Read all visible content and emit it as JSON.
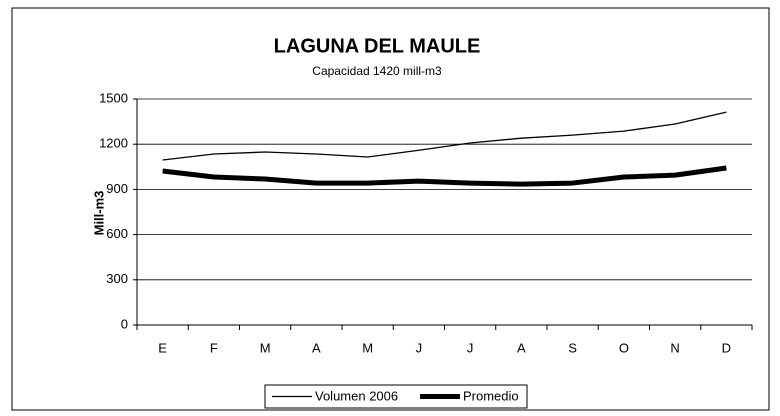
{
  "chart_data": {
    "type": "line",
    "title": "LAGUNA DEL MAULE",
    "subtitle": "Capacidad 1420 mill-m3",
    "y_label": "Mill-m3",
    "categories": [
      "E",
      "F",
      "M",
      "A",
      "M",
      "J",
      "J",
      "A",
      "S",
      "O",
      "N",
      "D"
    ],
    "series": [
      {
        "name": "Volumen 2006",
        "color": "#000000",
        "width": 1.3,
        "values": [
          1095,
          1135,
          1148,
          1135,
          1115,
          1160,
          1208,
          1240,
          1260,
          1287,
          1334,
          1413
        ]
      },
      {
        "name": "Promedio",
        "color": "#000000",
        "width": 5,
        "values": [
          1022,
          982,
          969,
          942,
          942,
          955,
          942,
          935,
          942,
          982,
          995,
          1042
        ]
      }
    ],
    "ylim": [
      0,
      1500
    ],
    "yticks": [
      0,
      300,
      600,
      900,
      1200,
      1500
    ],
    "grid": true,
    "legend": "bottom"
  }
}
